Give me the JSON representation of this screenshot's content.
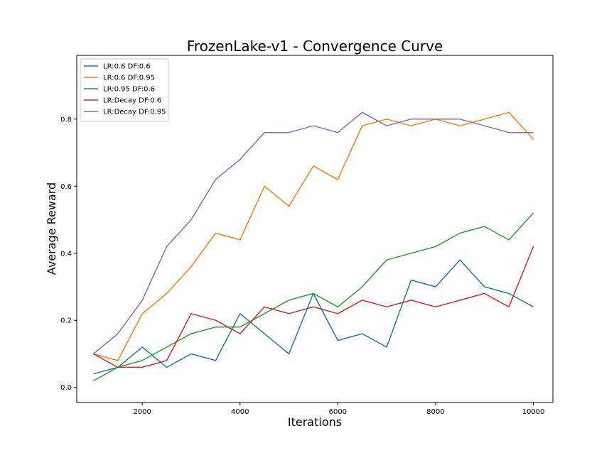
{
  "chart_data": {
    "type": "line",
    "title": "FrozenLake-v1 - Convergence Curve",
    "xlabel": "Iterations",
    "ylabel": "Average Reward",
    "xlim": [
      660,
      10400
    ],
    "ylim": [
      -0.045,
      0.99
    ],
    "xticks": [
      2000,
      4000,
      6000,
      8000,
      10000
    ],
    "yticks": [
      0.0,
      0.2,
      0.4,
      0.6,
      0.8
    ],
    "ytick_labels": [
      "0.0",
      "0.2",
      "0.4",
      "0.6",
      "0.8"
    ],
    "grid": false,
    "legend_position": "top-left",
    "x": [
      1000,
      1500,
      2000,
      2500,
      3000,
      3500,
      4000,
      4500,
      5000,
      5500,
      6000,
      6500,
      7000,
      7500,
      8000,
      8500,
      9000,
      9500,
      10000
    ],
    "series": [
      {
        "name": "LR:0.6 DF:0.6",
        "color": "#1f77b4",
        "values": [
          0.04,
          0.06,
          0.12,
          0.06,
          0.1,
          0.08,
          0.22,
          0.16,
          0.1,
          0.28,
          0.14,
          0.16,
          0.12,
          0.32,
          0.3,
          0.38,
          0.3,
          0.28,
          0.24
        ]
      },
      {
        "name": "LR:0.6 DF:0.95",
        "color": "#ff7f0e",
        "values": [
          0.1,
          0.08,
          0.22,
          0.28,
          0.36,
          0.46,
          0.44,
          0.6,
          0.54,
          0.66,
          0.62,
          0.78,
          0.8,
          0.78,
          0.8,
          0.78,
          0.8,
          0.82,
          0.74
        ]
      },
      {
        "name": "LR:0.95 DF:0.6",
        "color": "#2ca02c",
        "values": [
          0.02,
          0.06,
          0.08,
          0.12,
          0.16,
          0.18,
          0.18,
          0.22,
          0.26,
          0.28,
          0.24,
          0.3,
          0.38,
          0.4,
          0.42,
          0.46,
          0.48,
          0.44,
          0.52
        ]
      },
      {
        "name": "LR:Decay DF:0.6",
        "color": "#d62728",
        "values": [
          0.1,
          0.06,
          0.06,
          0.08,
          0.22,
          0.2,
          0.16,
          0.24,
          0.22,
          0.24,
          0.22,
          0.26,
          0.24,
          0.26,
          0.24,
          0.26,
          0.28,
          0.24,
          0.42
        ]
      },
      {
        "name": "LR:Decay DF:0.95",
        "color": "#9467bd",
        "values": [
          0.1,
          0.16,
          0.26,
          0.42,
          0.5,
          0.62,
          0.68,
          0.76,
          0.76,
          0.78,
          0.76,
          0.82,
          0.78,
          0.8,
          0.8,
          0.8,
          0.78,
          0.76,
          0.76
        ]
      }
    ]
  }
}
